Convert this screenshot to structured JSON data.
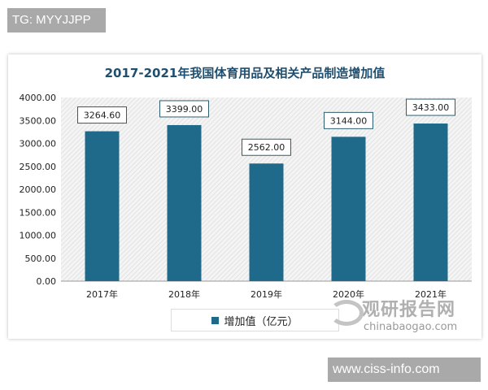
{
  "watermarks": {
    "top": "TG: MYYJJPP",
    "bottom": "www.ciss-info.com",
    "logo_cn": "观研报告网",
    "logo_en": "chinabaogao.com"
  },
  "chart_data": {
    "type": "bar",
    "title": "2017-2021年我国体育用品及相关产品制造增加值",
    "categories": [
      "2017年",
      "2018年",
      "2019年",
      "2020年",
      "2021年"
    ],
    "series": [
      {
        "name": "增加值（亿元）",
        "values": [
          3264.6,
          3399.0,
          2562.0,
          3144.0,
          3433.0
        ],
        "color": "#1f6a8a"
      }
    ],
    "data_labels": [
      "3264.60",
      "3399.00",
      "2562.00",
      "3144.00",
      "3433.00"
    ],
    "yticks": [
      "0.00",
      "500.00",
      "1000.00",
      "1500.00",
      "2000.00",
      "2500.00",
      "3000.00",
      "3500.00",
      "4000.00"
    ],
    "ylim": [
      0,
      4000
    ],
    "legend": "bottom",
    "grid": false
  }
}
